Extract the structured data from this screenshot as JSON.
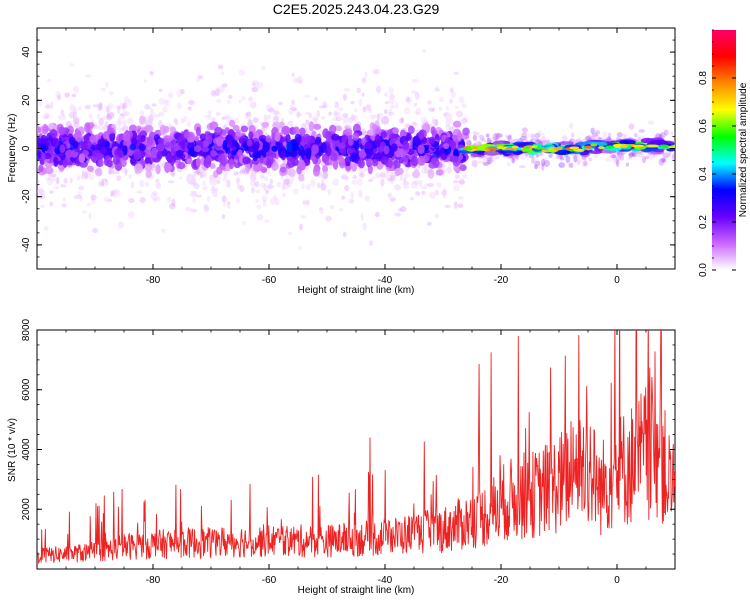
{
  "title": "C2E5.2025.243.04.23.G29",
  "chart_data": [
    {
      "type": "heatmap",
      "xlabel": "Height of straight line (km)",
      "ylabel": "Frequency (Hz)",
      "xlim": [
        -100,
        10
      ],
      "ylim": [
        -50,
        50
      ],
      "xticks": [
        -80,
        -60,
        -40,
        -20,
        0
      ],
      "yticks": [
        -40,
        -20,
        0,
        20,
        40
      ],
      "colorbar": {
        "label": "Normalized spectral amplitude",
        "ticks": [
          "0.0",
          "0.2",
          "0.4",
          "0.6",
          "0.8"
        ],
        "tick_values": [
          0.0,
          0.2,
          0.4,
          0.6,
          0.8
        ],
        "range": [
          0,
          1
        ],
        "colormap": [
          "#ffffff",
          "#cc66ff",
          "#6600ff",
          "#0000ff",
          "#00ffff",
          "#00ff00",
          "#ffff00",
          "#ff8800",
          "#ff0000",
          "#ff0066"
        ]
      },
      "features": [
        {
          "x_range": [
            -100,
            -26
          ],
          "center_hz": 0,
          "spread_hz": 8,
          "amplitude": 0.35
        },
        {
          "x_range": [
            -26,
            -5
          ],
          "center_hz": 0,
          "spread_hz": 2,
          "amplitude": 0.8
        },
        {
          "x_range": [
            -5,
            10
          ],
          "center_hz": 1,
          "spread_hz": 2,
          "amplitude": 0.75
        }
      ]
    },
    {
      "type": "line",
      "xlabel": "Height of straight line (km)",
      "ylabel": "SNR (10 * v/v)",
      "xlim": [
        -100,
        10
      ],
      "ylim": [
        0,
        8000
      ],
      "xticks": [
        -80,
        -60,
        -40,
        -20,
        0
      ],
      "yticks": [
        2000,
        4000,
        6000,
        8000
      ],
      "series": [
        {
          "color": "#ee2222",
          "envelope": [
            {
              "x": -100,
              "y": 700
            },
            {
              "x": -95,
              "y": 800
            },
            {
              "x": -90,
              "y": 900
            },
            {
              "x": -85,
              "y": 1200
            },
            {
              "x": -80,
              "y": 1300
            },
            {
              "x": -75,
              "y": 1400
            },
            {
              "x": -70,
              "y": 1400
            },
            {
              "x": -65,
              "y": 1500
            },
            {
              "x": -60,
              "y": 1500
            },
            {
              "x": -55,
              "y": 1500
            },
            {
              "x": -50,
              "y": 1500
            },
            {
              "x": -45,
              "y": 1600
            },
            {
              "x": -40,
              "y": 1700
            },
            {
              "x": -35,
              "y": 1900
            },
            {
              "x": -30,
              "y": 2100
            },
            {
              "x": -25,
              "y": 2600
            },
            {
              "x": -22,
              "y": 3000
            },
            {
              "x": -20,
              "y": 3500
            },
            {
              "x": -17,
              "y": 3900
            },
            {
              "x": -14,
              "y": 4000
            },
            {
              "x": -10,
              "y": 4600
            },
            {
              "x": -7,
              "y": 5200
            },
            {
              "x": -5,
              "y": 5700
            },
            {
              "x": -3,
              "y": 4200
            },
            {
              "x": -2,
              "y": 4600
            },
            {
              "x": 0,
              "y": 5200
            },
            {
              "x": 3,
              "y": 5700
            },
            {
              "x": 5,
              "y": 6300
            },
            {
              "x": 7,
              "y": 6600
            },
            {
              "x": 8,
              "y": 5600
            },
            {
              "x": 9,
              "y": 4700
            },
            {
              "x": 10,
              "y": 4000
            }
          ]
        }
      ]
    }
  ]
}
